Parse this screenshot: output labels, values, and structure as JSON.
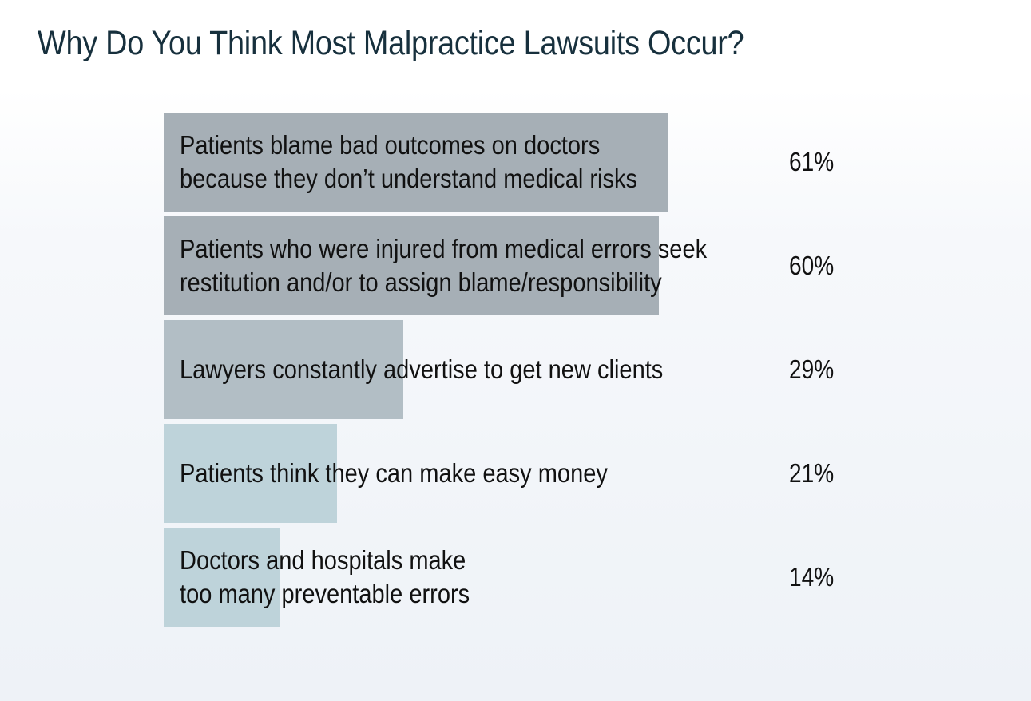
{
  "chart_data": {
    "type": "bar",
    "orientation": "horizontal",
    "title": "Why Do You Think Most Malpractice Lawsuits Occur?",
    "xlim": [
      0,
      100
    ],
    "unit": "%",
    "grid": false,
    "legend": "none",
    "categories": [
      "Patients blame bad outcomes on doctors\nbecause they don’t understand medical risks",
      "Patients who were injured from medical errors seek\nrestitution and/or to assign blame/responsibility",
      "Lawyers constantly advertise to get new clients",
      "Patients think they can make easy money",
      "Doctors and hospitals make\ntoo many preventable errors"
    ],
    "values": [
      61,
      60,
      29,
      21,
      14
    ],
    "value_labels": [
      "61%",
      "60%",
      "29%",
      "21%",
      "14%"
    ],
    "colors": [
      "#a6afb6",
      "#a6afb6",
      "#b2bec5",
      "#bed3da",
      "#bed3da"
    ]
  }
}
